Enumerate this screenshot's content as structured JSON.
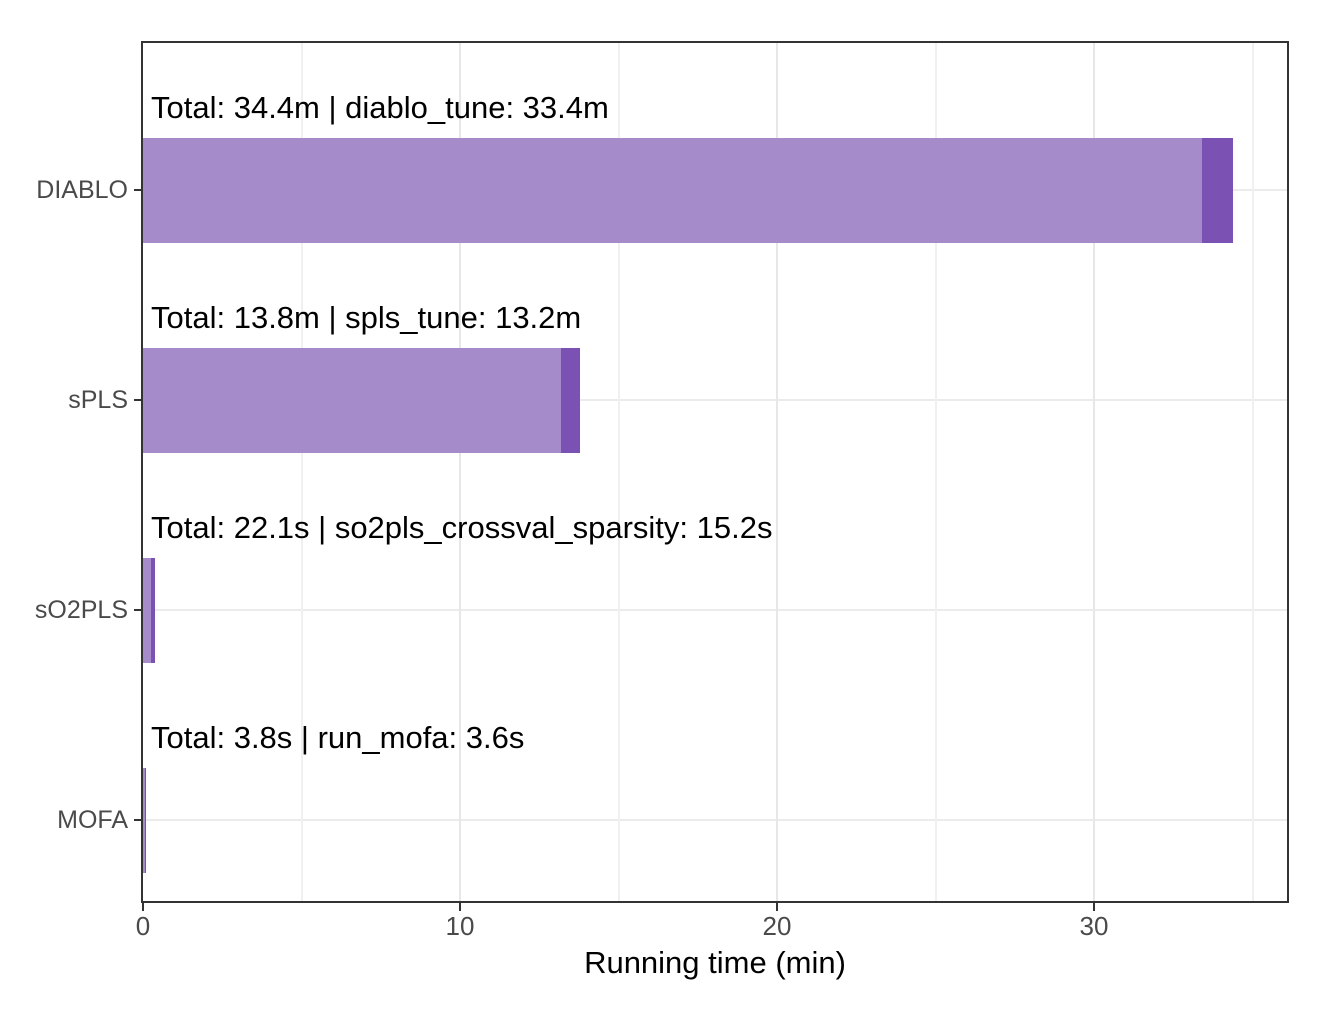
{
  "chart_data": {
    "type": "bar",
    "orientation": "horizontal",
    "title": "",
    "xlabel": "Running time (min)",
    "ylabel": "",
    "categories": [
      "DIABLO",
      "sPLS",
      "sO2PLS",
      "MOFA"
    ],
    "annotations": [
      "Total: 34.4m | diablo_tune: 33.4m",
      "Total: 13.8m | spls_tune: 13.2m",
      "Total: 22.1s | so2pls_crossval_sparsity: 15.2s",
      "Total: 3.8s | run_mofa: 3.6s"
    ],
    "totals_label": [
      "34.4m",
      "13.8m",
      "22.1s",
      "3.8s"
    ],
    "main_step": [
      {
        "name": "diablo_tune",
        "time_label": "33.4m"
      },
      {
        "name": "spls_tune",
        "time_label": "13.2m"
      },
      {
        "name": "so2pls_crossval_sparsity",
        "time_label": "15.2s"
      },
      {
        "name": "run_mofa",
        "time_label": "3.6s"
      }
    ],
    "series": [
      {
        "name": "main_step_time",
        "color": "#a58bc9",
        "values_min": [
          33.4,
          13.2,
          0.2533,
          0.06
        ]
      },
      {
        "name": "remaining_time",
        "color": "#7b51b4",
        "values_min": [
          1.0,
          0.6,
          0.115,
          0.0033
        ]
      }
    ],
    "totals_min": [
      34.4,
      13.8,
      0.3683,
      0.0633
    ],
    "x_major_ticks": [
      0,
      10,
      20,
      30
    ],
    "x_minor_ticks": [
      5,
      15,
      25,
      35
    ],
    "xlim": [
      0,
      36.1
    ],
    "grid": "major and minor vertical, major horizontal",
    "legend": false,
    "panel_border_color": "#333333",
    "axis_text_color": "#4a4a4a",
    "axis_title_color": "#000000"
  }
}
